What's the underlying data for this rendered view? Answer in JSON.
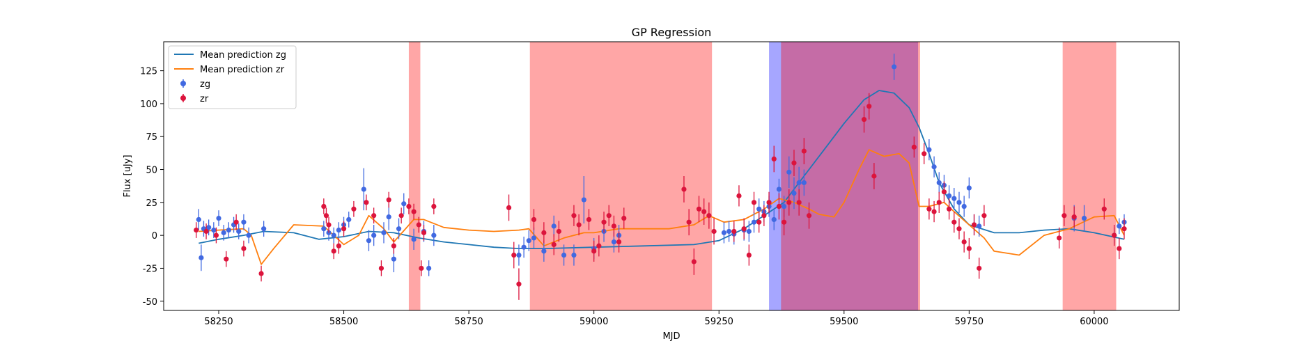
{
  "chart_data": {
    "type": "scatter",
    "title": "GP Regression",
    "xlabel": "MJD",
    "ylabel": "Flux [uJy]",
    "xlim": [
      58140,
      60170
    ],
    "ylim": [
      -57,
      147
    ],
    "xticks": [
      58250,
      58500,
      58750,
      59000,
      59250,
      59500,
      59750,
      60000
    ],
    "yticks": [
      -50,
      -25,
      0,
      25,
      50,
      75,
      100,
      125
    ],
    "grid": false,
    "legend": {
      "placement": "top-left",
      "entries": [
        "Mean prediction zg",
        "Mean prediction zr",
        "zg",
        "zr"
      ]
    },
    "colors": {
      "zg_line": "#1f77b4",
      "zr_line": "#ff7f0e",
      "zg_points": "#4169e1",
      "zr_points": "#dc143c",
      "red_span": "#ff0000",
      "blue_span": "#0000ff"
    },
    "spans": [
      {
        "band": "zr",
        "x": [
          58630,
          58653
        ]
      },
      {
        "band": "zr",
        "x": [
          58872,
          59236
        ]
      },
      {
        "band": "zg",
        "x": [
          59350,
          59648
        ]
      },
      {
        "band": "zr",
        "x": [
          59374,
          59652
        ]
      },
      {
        "band": "zr",
        "x": [
          59937,
          60044
        ]
      }
    ],
    "series": [
      {
        "name": "Mean prediction zg",
        "kind": "line",
        "x": [
          58210,
          58250,
          58300,
          58340,
          58400,
          58450,
          58500,
          58550,
          58600,
          58650,
          58700,
          58750,
          58800,
          58850,
          58900,
          59000,
          59100,
          59200,
          59250,
          59300,
          59340,
          59380,
          59420,
          59460,
          59500,
          59540,
          59570,
          59600,
          59630,
          59650,
          59670,
          59690,
          59720,
          59750,
          59800,
          59850,
          59900,
          59950,
          60000,
          60060
        ],
        "y": [
          -6,
          -3,
          0,
          3,
          2,
          -3,
          -1,
          3,
          2,
          -2,
          -5,
          -7,
          -9,
          -10,
          -10,
          -9,
          -8,
          -7,
          -4,
          5,
          15,
          25,
          45,
          65,
          85,
          103,
          110,
          108,
          97,
          82,
          62,
          40,
          20,
          8,
          2,
          2,
          4,
          5,
          2,
          -3
        ]
      },
      {
        "name": "Mean prediction zr",
        "kind": "line",
        "x": [
          58210,
          58250,
          58300,
          58315,
          58335,
          58360,
          58400,
          58460,
          58500,
          58530,
          58550,
          58580,
          58600,
          58640,
          58660,
          58700,
          58750,
          58800,
          58850,
          58870,
          58900,
          58940,
          58980,
          59000,
          59050,
          59100,
          59150,
          59200,
          59230,
          59260,
          59300,
          59340,
          59370,
          59400,
          59430,
          59450,
          59480,
          59500,
          59530,
          59550,
          59580,
          59610,
          59630,
          59650,
          59670,
          59700,
          59720,
          59750,
          59780,
          59800,
          59850,
          59900,
          59950,
          60000,
          60040,
          60060
        ],
        "y": [
          3,
          4,
          5,
          0,
          -22,
          -10,
          8,
          7,
          -7,
          0,
          15,
          5,
          -5,
          12,
          12,
          6,
          4,
          3,
          4,
          5,
          -8,
          -2,
          2,
          2,
          5,
          5,
          5,
          8,
          15,
          10,
          12,
          20,
          28,
          25,
          20,
          16,
          14,
          25,
          50,
          65,
          60,
          62,
          55,
          22,
          22,
          25,
          18,
          8,
          -2,
          -12,
          -15,
          0,
          5,
          14,
          15,
          0
        ]
      },
      {
        "name": "zg",
        "kind": "points",
        "x": [
          58210,
          58215,
          58220,
          58230,
          58240,
          58250,
          58260,
          58270,
          58280,
          58290,
          58300,
          58310,
          58340,
          58460,
          58470,
          58480,
          58490,
          58500,
          58510,
          58540,
          58550,
          58560,
          58580,
          58590,
          58600,
          58610,
          58620,
          58640,
          58660,
          58670,
          58680,
          58850,
          58860,
          58870,
          58880,
          58900,
          58920,
          58940,
          58960,
          58980,
          59000,
          59020,
          59040,
          59050,
          59260,
          59270,
          59280,
          59300,
          59310,
          59320,
          59330,
          59340,
          59350,
          59360,
          59370,
          59380,
          59390,
          59400,
          59410,
          59420,
          59600,
          59670,
          59680,
          59690,
          59700,
          59710,
          59720,
          59730,
          59740,
          59750,
          59760,
          59770,
          59960,
          59980,
          60040,
          60050,
          60060
        ],
        "y": [
          12,
          -17,
          5,
          6,
          4,
          13,
          2,
          4,
          8,
          3,
          10,
          0,
          5,
          5,
          2,
          0,
          4,
          8,
          12,
          35,
          -4,
          0,
          2,
          14,
          -18,
          5,
          24,
          -3,
          3,
          -25,
          0,
          -15,
          -9,
          -4,
          -2,
          -12,
          7,
          -15,
          -15,
          27,
          -10,
          3,
          -5,
          0,
          2,
          3,
          1,
          4,
          3,
          10,
          20,
          18,
          22,
          12,
          35,
          22,
          48,
          32,
          40,
          40,
          128,
          65,
          52,
          40,
          38,
          30,
          28,
          25,
          22,
          36,
          8,
          7,
          13,
          13,
          0,
          7,
          10
        ],
        "err": [
          8,
          10,
          6,
          6,
          6,
          6,
          6,
          6,
          6,
          6,
          6,
          6,
          6,
          6,
          6,
          6,
          6,
          6,
          6,
          16,
          8,
          8,
          8,
          10,
          10,
          8,
          8,
          8,
          8,
          6,
          8,
          8,
          8,
          8,
          8,
          8,
          8,
          8,
          8,
          18,
          8,
          8,
          8,
          8,
          8,
          8,
          8,
          8,
          8,
          8,
          8,
          8,
          8,
          8,
          8,
          8,
          12,
          12,
          12,
          10,
          10,
          8,
          8,
          8,
          8,
          8,
          8,
          8,
          8,
          8,
          8,
          8,
          10,
          10,
          6,
          6,
          6
        ]
      },
      {
        "name": "zr",
        "kind": "points",
        "x": [
          58205,
          58225,
          58245,
          58265,
          58285,
          58300,
          58335,
          58460,
          58465,
          58470,
          58480,
          58490,
          58500,
          58520,
          58545,
          58560,
          58575,
          58590,
          58600,
          58615,
          58630,
          58640,
          58650,
          58655,
          58660,
          58680,
          58830,
          58840,
          58850,
          58880,
          58900,
          58920,
          58930,
          58960,
          58970,
          58990,
          59000,
          59010,
          59020,
          59030,
          59040,
          59050,
          59060,
          59180,
          59190,
          59200,
          59210,
          59220,
          59230,
          59240,
          59280,
          59290,
          59300,
          59310,
          59320,
          59330,
          59340,
          59350,
          59360,
          59370,
          59380,
          59390,
          59400,
          59410,
          59420,
          59430,
          59540,
          59550,
          59560,
          59640,
          59660,
          59670,
          59680,
          59690,
          59700,
          59710,
          59720,
          59730,
          59740,
          59750,
          59760,
          59770,
          59780,
          59930,
          59940,
          59960,
          60020,
          60040,
          60050,
          60060
        ],
        "y": [
          4,
          3,
          0,
          -18,
          10,
          -10,
          -29,
          22,
          15,
          8,
          -12,
          -8,
          5,
          20,
          25,
          15,
          -25,
          27,
          -8,
          15,
          22,
          18,
          8,
          -25,
          2,
          22,
          21,
          -15,
          -37,
          12,
          2,
          -7,
          3,
          15,
          8,
          12,
          -12,
          -8,
          10,
          15,
          7,
          -5,
          13,
          35,
          10,
          -20,
          20,
          18,
          15,
          3,
          3,
          30,
          5,
          -15,
          25,
          10,
          15,
          25,
          58,
          22,
          10,
          25,
          55,
          25,
          64,
          15,
          88,
          98,
          45,
          67,
          62,
          20,
          18,
          25,
          33,
          20,
          10,
          5,
          -5,
          -10,
          8,
          -25,
          15,
          -2,
          15,
          14,
          20,
          0,
          -10,
          5
        ],
        "err": [
          6,
          6,
          6,
          6,
          6,
          6,
          6,
          6,
          6,
          6,
          6,
          6,
          6,
          6,
          6,
          6,
          6,
          6,
          6,
          6,
          6,
          6,
          6,
          6,
          6,
          6,
          10,
          10,
          12,
          8,
          8,
          8,
          8,
          8,
          8,
          8,
          8,
          8,
          8,
          8,
          8,
          8,
          8,
          10,
          10,
          10,
          10,
          10,
          10,
          10,
          8,
          8,
          8,
          8,
          8,
          8,
          8,
          8,
          10,
          10,
          10,
          10,
          10,
          10,
          10,
          10,
          10,
          10,
          10,
          8,
          8,
          8,
          8,
          8,
          8,
          8,
          8,
          8,
          8,
          8,
          8,
          8,
          8,
          8,
          8,
          8,
          8,
          8,
          8,
          8
        ]
      }
    ]
  }
}
